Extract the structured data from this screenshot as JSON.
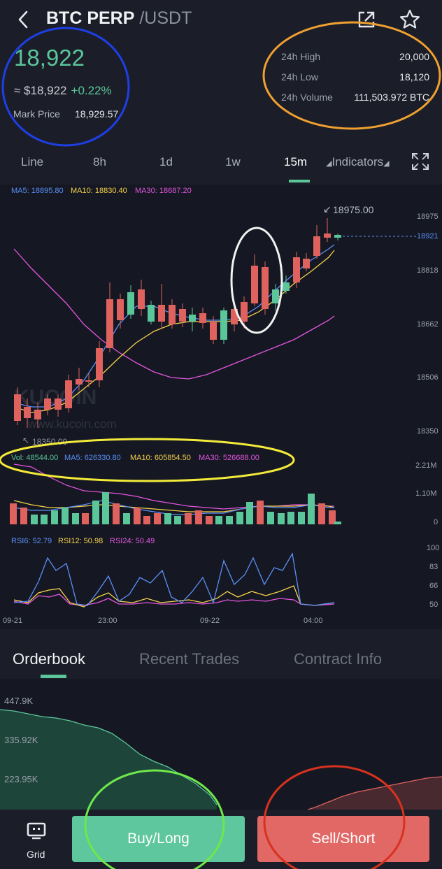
{
  "header": {
    "title": "BTC PERP",
    "pair": " /USDT",
    "icons": [
      "back-icon",
      "share-icon",
      "star-icon"
    ]
  },
  "ticker": {
    "price": "18,922",
    "approx": "≈ $18,922",
    "change": "+0.22%",
    "mark_label": "Mark Price",
    "mark_value": "18,929.57",
    "stats": [
      {
        "label": "24h High",
        "value": "20,000"
      },
      {
        "label": "24h Low",
        "value": "18,120"
      },
      {
        "label": "24h Volume",
        "value": "111,503.972 BTC"
      }
    ]
  },
  "tabs": {
    "items": [
      "Line",
      "8h",
      "1d",
      "1w",
      "15m"
    ],
    "indicators": "Indicators",
    "active": "15m"
  },
  "chart": {
    "ma_legend": [
      {
        "text": "MA5: 18895.80",
        "color": "#5b8ff9"
      },
      {
        "text": "MA10: 18830.40",
        "color": "#f5d14a"
      },
      {
        "text": "MA30: 18687.20",
        "color": "#e455e0"
      }
    ],
    "y_labels": [
      "18975",
      "18818",
      "18662",
      "18506",
      "18350"
    ],
    "current_price": "18921",
    "high_marker": "18975.00",
    "low_marker": "18350.00",
    "watermark": "KUCOIN",
    "watermark_url": "www.kucoin.com",
    "vol_legend": [
      {
        "text": "Vol: 48544.00",
        "color": "#5bc69a"
      },
      {
        "text": "MA5: 626330.80",
        "color": "#5b8ff9"
      },
      {
        "text": "MA10: 605854.50",
        "color": "#f5d14a"
      },
      {
        "text": "MA30: 526688.00",
        "color": "#e455e0"
      }
    ],
    "vol_labels": [
      "2.21M",
      "1.10M",
      "0"
    ],
    "rsi_legend": [
      {
        "text": "RSI6: 52.79",
        "color": "#5b8ff9"
      },
      {
        "text": "RSI12: 50.98",
        "color": "#f5d14a"
      },
      {
        "text": "RSI24: 50.49",
        "color": "#e455e0"
      }
    ],
    "rsi_labels": [
      "100",
      "83",
      "66",
      "50"
    ],
    "x_labels": [
      "09-21",
      "23:00",
      "09-22",
      "04:00"
    ],
    "colors": {
      "up": "#5bc69a",
      "down": "#e0625f"
    }
  },
  "orderbook": {
    "tabs": [
      "Orderbook",
      "Recent Trades",
      "Contract Info"
    ],
    "active": "Orderbook",
    "depth_labels": [
      "447.9K",
      "335.92K",
      "223.95K"
    ]
  },
  "bottom": {
    "grid_label": "Grid",
    "buy": "Buy/Long",
    "sell": "Sell/Short"
  }
}
